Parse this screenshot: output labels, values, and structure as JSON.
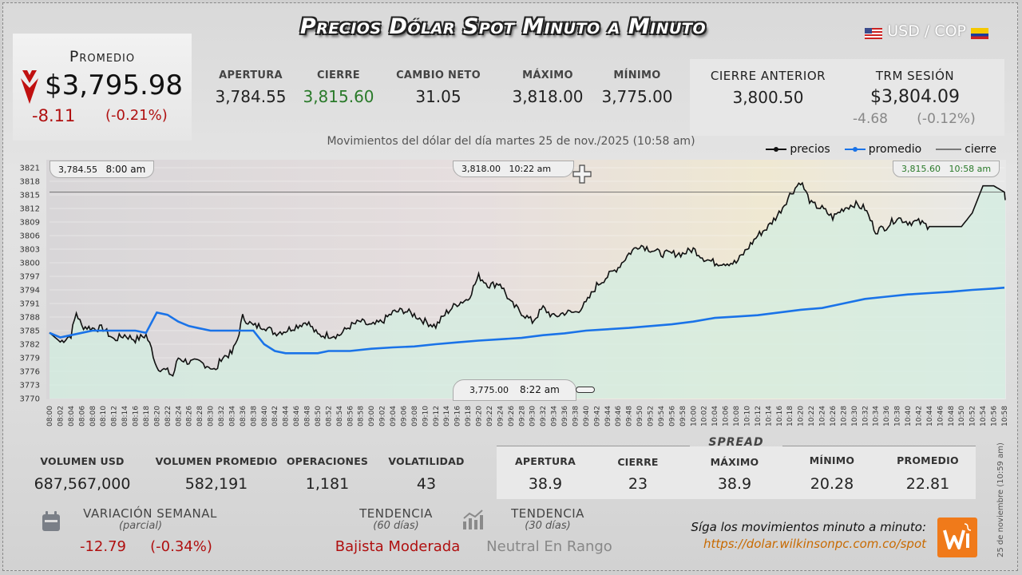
{
  "header": {
    "title": "Precios Dólar Spot Minuto a Minuto",
    "pair": "USD / COP"
  },
  "average": {
    "label": "Promedio",
    "value": "$3,795.98",
    "change": "-8.11",
    "change_pct": "(-0.21%)",
    "icon": "down-arrow-icon"
  },
  "stats": [
    {
      "label": "APERTURA",
      "value": "3,784.55",
      "color": "#222222"
    },
    {
      "label": "CIERRE",
      "value": "3,815.60",
      "color": "#2a7a2a"
    },
    {
      "label": "CAMBIO NETO",
      "value": "31.05",
      "color": "#222222"
    },
    {
      "label": "MÁXIMO",
      "value": "3,818.00",
      "color": "#222222"
    },
    {
      "label": "MÍNIMO",
      "value": "3,775.00",
      "color": "#222222"
    }
  ],
  "previous": {
    "prev_close_label": "CIERRE ANTERIOR",
    "prev_close_value": "3,800.50",
    "trm_label": "TRM SESIÓN",
    "trm_value": "$3,804.09",
    "trm_change": "-4.68",
    "trm_change_pct": "(-0.12%)"
  },
  "subtitle": "Movimientos del dólar del día martes 25 de nov./2025 (10:58 am)",
  "legend": {
    "prices": "precios",
    "average": "promedio",
    "close": "cierre"
  },
  "callouts": {
    "open": {
      "value": "3,784.55",
      "time": "8:00 am"
    },
    "max": {
      "value": "3,818.00",
      "time": "10:22 am"
    },
    "close": {
      "value": "3,815.60",
      "time": "10:58 am"
    },
    "min": {
      "value": "3,775.00",
      "time": "8:22 am"
    }
  },
  "chart_data": {
    "type": "line",
    "title": "",
    "xlabel": "",
    "ylabel": "",
    "ylim": [
      3770,
      3821
    ],
    "yticks": [
      "3821",
      "3818",
      "3815",
      "3812",
      "3809",
      "3806",
      "3803",
      "3800",
      "3797",
      "3794",
      "3791",
      "3788",
      "3785",
      "3782",
      "3779",
      "3776",
      "3773",
      "3770"
    ],
    "xticks": [
      "08:00",
      "08:02",
      "08:04",
      "08:06",
      "08:08",
      "08:10",
      "08:12",
      "08:14",
      "08:16",
      "08:18",
      "08:20",
      "08:22",
      "08:24",
      "08:26",
      "08:28",
      "08:30",
      "08:32",
      "08:34",
      "08:36",
      "08:38",
      "08:40",
      "08:42",
      "08:44",
      "08:46",
      "08:48",
      "08:50",
      "08:52",
      "08:54",
      "08:56",
      "08:58",
      "09:00",
      "09:02",
      "09:04",
      "09:06",
      "09:08",
      "09:10",
      "09:12",
      "09:14",
      "09:16",
      "09:18",
      "09:20",
      "09:22",
      "09:24",
      "09:26",
      "09:28",
      "09:30",
      "09:32",
      "09:34",
      "09:36",
      "09:38",
      "09:40",
      "09:42",
      "09:44",
      "09:46",
      "09:48",
      "09:50",
      "09:52",
      "09:54",
      "09:56",
      "09:58",
      "10:00",
      "10:02",
      "10:04",
      "10:06",
      "10:08",
      "10:10",
      "10:12",
      "10:14",
      "10:16",
      "10:18",
      "10:20",
      "10:22",
      "10:24",
      "10:26",
      "10:28",
      "10:30",
      "10:32",
      "10:34",
      "10:36",
      "10:38",
      "10:40",
      "10:42",
      "10:44",
      "10:46",
      "10:48",
      "10:50",
      "10:52",
      "10:54",
      "10:56",
      "10:58"
    ],
    "close_line": 3815.6,
    "series": [
      {
        "name": "precios",
        "color": "#111111",
        "x": [
          0,
          2,
          4,
          5,
          6,
          8,
          10,
          12,
          14,
          16,
          18,
          19,
          20,
          22,
          23,
          24,
          26,
          28,
          30,
          31,
          32,
          34,
          35,
          36,
          38,
          40,
          42,
          44,
          46,
          48,
          50,
          52,
          54,
          56,
          58,
          60,
          62,
          64,
          66,
          68,
          70,
          72,
          74,
          76,
          78,
          80,
          82,
          84,
          86,
          88,
          90,
          92,
          94,
          96,
          98,
          100,
          102,
          104,
          106,
          108,
          110,
          112,
          114,
          116,
          118,
          120,
          122,
          124,
          126,
          128,
          130,
          132,
          134,
          136,
          138,
          140,
          142,
          144,
          146,
          148,
          150,
          152,
          154,
          156,
          158,
          160,
          162,
          164,
          166,
          168,
          170,
          172,
          174,
          176,
          178
        ],
        "y": [
          3784.55,
          3782.5,
          3784,
          3789,
          3786,
          3785.5,
          3785.5,
          3783,
          3784,
          3783,
          3784,
          3781,
          3777,
          3776,
          3775,
          3779,
          3778,
          3778,
          3777,
          3776,
          3779,
          3780,
          3783,
          3788,
          3786,
          3786,
          3784.5,
          3785,
          3786,
          3787,
          3784,
          3784,
          3784,
          3786,
          3787,
          3786,
          3787,
          3789,
          3789.5,
          3788.5,
          3787,
          3786,
          3789,
          3791,
          3792,
          3797,
          3795,
          3795.5,
          3791,
          3789,
          3787,
          3790,
          3788,
          3789,
          3789,
          3791,
          3795,
          3797,
          3799,
          3802,
          3804,
          3803,
          3802,
          3802,
          3802,
          3803,
          3801,
          3800,
          3800,
          3800,
          3803,
          3806,
          3808,
          3811,
          3815,
          3818,
          3813,
          3812,
          3810,
          3812,
          3813,
          3812,
          3807,
          3808,
          3810,
          3809,
          3809,
          3808,
          3808,
          3808,
          3808,
          3811,
          3817,
          3817,
          3815.6
        ]
      },
      {
        "name": "promedio",
        "color": "#1a73e8",
        "x": [
          0,
          2,
          4,
          6,
          8,
          10,
          12,
          14,
          16,
          18,
          20,
          22,
          24,
          26,
          28,
          30,
          32,
          34,
          36,
          38,
          40,
          42,
          44,
          46,
          48,
          50,
          52,
          54,
          56,
          60,
          64,
          68,
          72,
          76,
          80,
          84,
          88,
          92,
          96,
          100,
          104,
          108,
          112,
          116,
          120,
          124,
          128,
          132,
          136,
          140,
          144,
          148,
          152,
          156,
          160,
          164,
          168,
          172,
          176,
          178
        ],
        "y": [
          3784.5,
          3783.5,
          3784,
          3784.5,
          3785,
          3785,
          3785,
          3785,
          3785,
          3784.5,
          3789,
          3788.5,
          3787,
          3786,
          3785.5,
          3785,
          3785,
          3785,
          3785,
          3785,
          3782,
          3780.5,
          3780,
          3780,
          3780,
          3780,
          3780.5,
          3780.5,
          3780.5,
          3781,
          3781.3,
          3781.5,
          3782,
          3782.4,
          3782.8,
          3783.1,
          3783.4,
          3784,
          3784.4,
          3785,
          3785.3,
          3785.6,
          3786,
          3786.4,
          3787,
          3787.8,
          3788.1,
          3788.4,
          3789,
          3789.6,
          3790,
          3791,
          3792,
          3792.5,
          3793,
          3793.3,
          3793.6,
          3794,
          3794.3,
          3794.5
        ]
      }
    ]
  },
  "bottom_stats": [
    {
      "label": "VOLUMEN USD",
      "value": "687,567,000"
    },
    {
      "label": "VOLUMEN PROMEDIO",
      "value": "582,191"
    },
    {
      "label": "OPERACIONES",
      "value": "1,181"
    },
    {
      "label": "VOLATILIDAD",
      "value": "43"
    }
  ],
  "spread": {
    "title": "SPREAD",
    "items": [
      {
        "label": "APERTURA",
        "value": "38.9"
      },
      {
        "label": "CIERRE",
        "value": "23"
      },
      {
        "label": "MÁXIMO",
        "value": "38.9"
      },
      {
        "label": "MÍNIMO",
        "value": "20.28"
      },
      {
        "label": "PROMEDIO",
        "value": "22.81"
      }
    ]
  },
  "weekly": {
    "label": "VARIACIÓN SEMANAL",
    "sub": "(parcial)",
    "change": "-12.79",
    "change_pct": "(-0.34%)"
  },
  "trend60": {
    "label": "TENDENCIA",
    "sub": "(60 días)",
    "value": "Bajista Moderada",
    "color": "#b01010"
  },
  "trend30": {
    "label": "TENDENCIA",
    "sub": "(30 días)",
    "value": "Neutral En Rango",
    "color": "#888888"
  },
  "footer": {
    "follow": "Síga los movimientos minuto a minuto:",
    "url": "https://dolar.wilkinsonpc.com.co/spot",
    "vertical_date": "25 de noviembre (10:59 am)"
  }
}
